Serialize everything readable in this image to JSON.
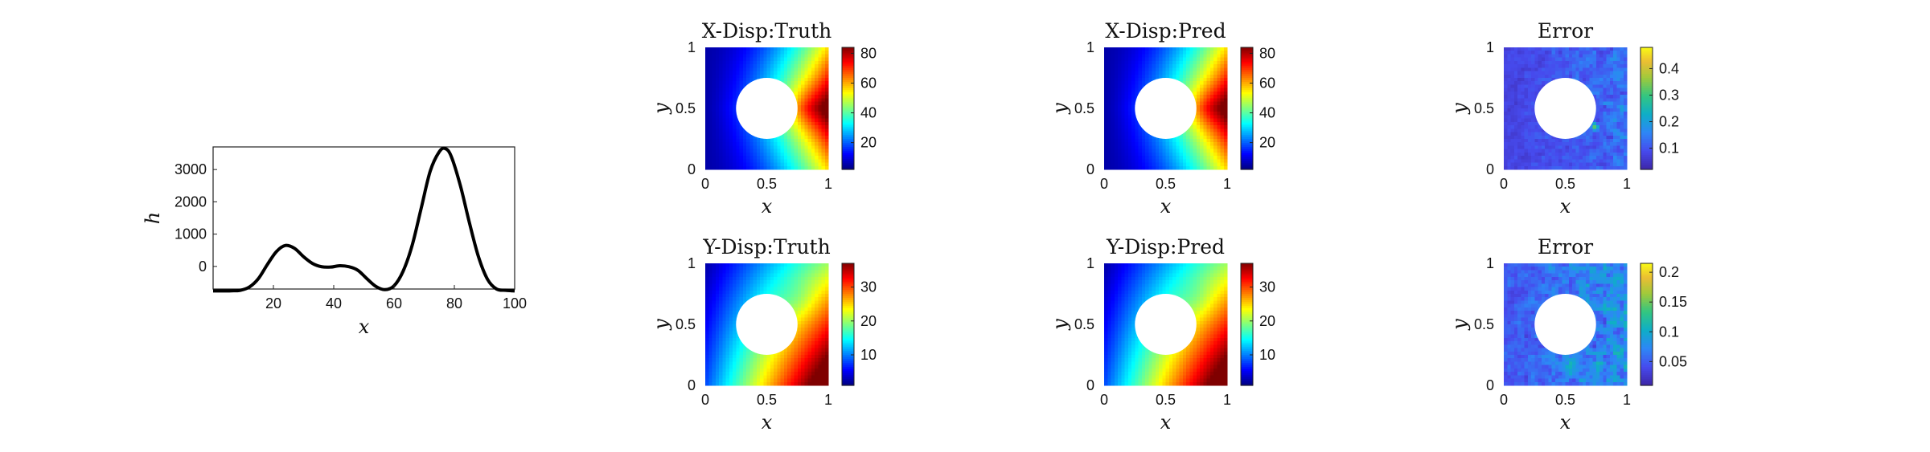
{
  "chart_data": [
    {
      "type": "line",
      "title": "",
      "xlabel": "x",
      "ylabel": "h",
      "xlim": [
        0,
        100
      ],
      "ylim": [
        -700,
        3700
      ],
      "xticks": [
        "20",
        "40",
        "60",
        "80",
        "100"
      ],
      "yticks": [
        "0",
        "1000",
        "2000",
        "3000"
      ],
      "grid": false,
      "series": [
        {
          "color": "#000000",
          "x": [
            0,
            3,
            6,
            9,
            12,
            15,
            18,
            21,
            24,
            27,
            30,
            33,
            36,
            39,
            42,
            45,
            48,
            51,
            54,
            57,
            60,
            63,
            66,
            69,
            72,
            75,
            77,
            79,
            82,
            85,
            88,
            91,
            94,
            97,
            100
          ],
          "y": [
            -760,
            -760,
            -755,
            -740,
            -640,
            -380,
            60,
            460,
            650,
            560,
            300,
            90,
            -10,
            -20,
            20,
            -10,
            -120,
            -380,
            -620,
            -720,
            -600,
            -150,
            650,
            1800,
            2950,
            3550,
            3650,
            3400,
            2500,
            1350,
            300,
            -400,
            -700,
            -740,
            -760
          ]
        }
      ]
    },
    {
      "type": "heatmap",
      "title": "X-Disp:Truth",
      "xlabel": "x",
      "ylabel": "y",
      "xlim": [
        0,
        1
      ],
      "ylim": [
        0,
        1
      ],
      "xticks": [
        "0",
        "0.5",
        "1"
      ],
      "yticks": [
        "0",
        "0.5",
        "1"
      ],
      "colormap": "jet",
      "clim": [
        2,
        84
      ],
      "colorbar_ticks": [
        "20",
        "40",
        "60",
        "80"
      ],
      "hole": {
        "center": [
          0.5,
          0.5
        ],
        "radius": 0.25
      },
      "field": "x_disp"
    },
    {
      "type": "heatmap",
      "title": "X-Disp:Pred",
      "xlabel": "x",
      "ylabel": "y",
      "xlim": [
        0,
        1
      ],
      "ylim": [
        0,
        1
      ],
      "xticks": [
        "0",
        "0.5",
        "1"
      ],
      "yticks": [
        "0",
        "0.5",
        "1"
      ],
      "colormap": "jet",
      "clim": [
        2,
        84
      ],
      "colorbar_ticks": [
        "20",
        "40",
        "60",
        "80"
      ],
      "hole": {
        "center": [
          0.5,
          0.5
        ],
        "radius": 0.25
      },
      "field": "x_disp"
    },
    {
      "type": "heatmap",
      "title": "Error",
      "xlabel": "x",
      "ylabel": "y",
      "xlim": [
        0,
        1
      ],
      "ylim": [
        0,
        1
      ],
      "xticks": [
        "0",
        "0.5",
        "1"
      ],
      "yticks": [
        "0",
        "0.5",
        "1"
      ],
      "colormap": "parula",
      "clim": [
        0.02,
        0.48
      ],
      "colorbar_ticks": [
        "0.1",
        "0.2",
        "0.3",
        "0.4"
      ],
      "hole": {
        "center": [
          0.5,
          0.5
        ],
        "radius": 0.25
      },
      "field": "x_error"
    },
    {
      "type": "heatmap",
      "title": "Y-Disp:Truth",
      "xlabel": "x",
      "ylabel": "y",
      "xlim": [
        0,
        1
      ],
      "ylim": [
        0,
        1
      ],
      "xticks": [
        "0",
        "0.5",
        "1"
      ],
      "yticks": [
        "0",
        "0.5",
        "1"
      ],
      "colormap": "jet",
      "clim": [
        1,
        37
      ],
      "colorbar_ticks": [
        "10",
        "20",
        "30"
      ],
      "hole": {
        "center": [
          0.5,
          0.5
        ],
        "radius": 0.25
      },
      "field": "y_disp"
    },
    {
      "type": "heatmap",
      "title": "Y-Disp:Pred",
      "xlabel": "x",
      "ylabel": "y",
      "xlim": [
        0,
        1
      ],
      "ylim": [
        0,
        1
      ],
      "xticks": [
        "0",
        "0.5",
        "1"
      ],
      "yticks": [
        "0",
        "0.5",
        "1"
      ],
      "colormap": "jet",
      "clim": [
        1,
        37
      ],
      "colorbar_ticks": [
        "10",
        "20",
        "30"
      ],
      "hole": {
        "center": [
          0.5,
          0.5
        ],
        "radius": 0.25
      },
      "field": "y_disp"
    },
    {
      "type": "heatmap",
      "title": "Error",
      "xlabel": "x",
      "ylabel": "y",
      "xlim": [
        0,
        1
      ],
      "ylim": [
        0,
        1
      ],
      "xticks": [
        "0",
        "0.5",
        "1"
      ],
      "yticks": [
        "0",
        "0.5",
        "1"
      ],
      "colormap": "parula",
      "clim": [
        0.01,
        0.215
      ],
      "colorbar_ticks": [
        "0.05",
        "0.1",
        "0.15",
        "0.2"
      ],
      "hole": {
        "center": [
          0.5,
          0.5
        ],
        "radius": 0.25
      },
      "field": "y_error"
    }
  ]
}
